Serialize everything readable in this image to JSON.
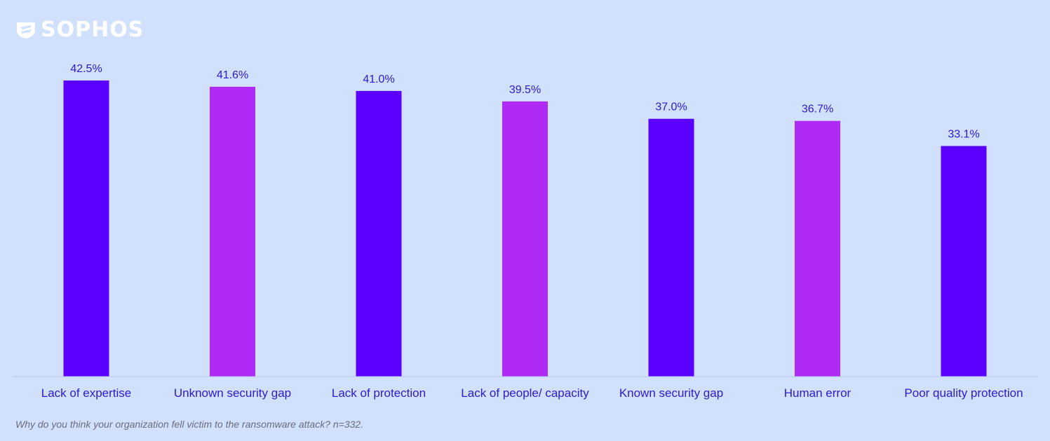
{
  "brand": {
    "name": "SOPHOS",
    "icon": "sophos-shield-icon"
  },
  "colors": {
    "background": "#d1e1fd",
    "bar_primary": "#5b00ff",
    "bar_secondary": "#af2af5",
    "text": "#2a1ad0",
    "footnote": "#6b6b7a"
  },
  "chart_data": {
    "type": "bar",
    "categories": [
      "Lack of expertise",
      "Unknown security gap",
      "Lack of protection",
      "Lack of people/ capacity",
      "Known security gap",
      "Human error",
      "Poor quality protection"
    ],
    "values": [
      42.5,
      41.6,
      41.0,
      39.5,
      37.0,
      36.7,
      33.1
    ],
    "value_labels": [
      "42.5%",
      "41.6%",
      "41.0%",
      "39.5%",
      "37.0%",
      "36.7%",
      "33.1%"
    ],
    "bar_colors": [
      "#5b00ff",
      "#af2af5",
      "#5b00ff",
      "#af2af5",
      "#5b00ff",
      "#af2af5",
      "#5b00ff"
    ],
    "ylim": [
      0,
      45
    ],
    "grid": false,
    "title": "",
    "xlabel": "",
    "ylabel": ""
  },
  "footnote": "Why do you think your organization fell victim to the ransomware attack? n=332."
}
